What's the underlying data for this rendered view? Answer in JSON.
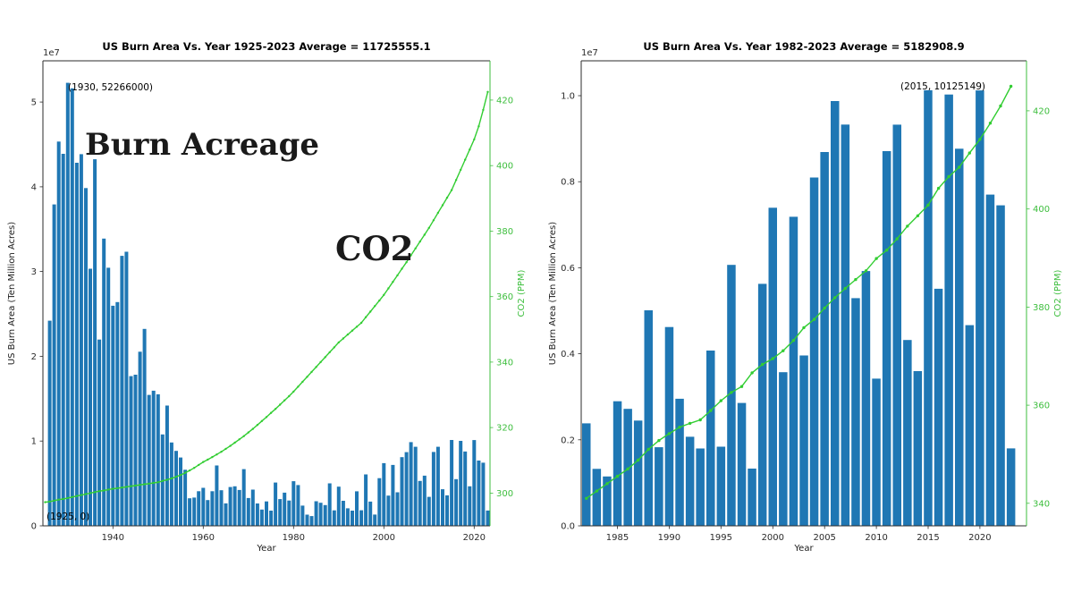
{
  "colors": {
    "bar": "#1f77b4",
    "co2_line": "#32cd32",
    "co2_axis": "#3dbe3d",
    "axis_dark": "#2b2b2b",
    "burn_label_blue": "#2878b8"
  },
  "chart_data": [
    {
      "type": "bar+line",
      "title": "US Burn Area Vs. Year 1925-2023 Average = 11725555.1",
      "xlabel": "Year",
      "ylabel": "US Burn Area (Ten Million Acres)",
      "y2label": "CO2 (PPM)",
      "offset_text": "1e7",
      "xlim": [
        1924.5,
        2023.5
      ],
      "ylim": [
        0,
        54860000
      ],
      "y2lim": [
        290,
        432
      ],
      "xticks": [
        1940,
        1960,
        1980,
        2000,
        2020
      ],
      "yticks": [
        {
          "v": 0,
          "label": "0"
        },
        {
          "v": 10000000,
          "label": "1"
        },
        {
          "v": 20000000,
          "label": "2"
        },
        {
          "v": 30000000,
          "label": "3"
        },
        {
          "v": 40000000,
          "label": "4"
        },
        {
          "v": 50000000,
          "label": "5"
        }
      ],
      "y2ticks": [
        {
          "v": 300,
          "label": "300"
        },
        {
          "v": 320,
          "label": "320"
        },
        {
          "v": 340,
          "label": "340"
        },
        {
          "v": 360,
          "label": "360"
        },
        {
          "v": 380,
          "label": "380"
        },
        {
          "v": 400,
          "label": "400"
        },
        {
          "v": 420,
          "label": "420"
        }
      ],
      "annotations": [
        {
          "text": "(1930, 52266000)"
        },
        {
          "text": "(1925, 0)"
        }
      ],
      "inner_labels": [
        {
          "text": "Burn Acreage",
          "color": "#2878b8"
        },
        {
          "text": "CO2",
          "color": "#32cd32"
        }
      ],
      "bars": {
        "name": "US Burn Area (acres)",
        "start_year": 1925,
        "values": [
          0,
          24200000,
          37919000,
          45335000,
          43890000,
          52266000,
          51607000,
          42838000,
          43841000,
          39852000,
          30335000,
          43249000,
          21980000,
          33891000,
          30449000,
          25963000,
          26401000,
          31854000,
          32333000,
          17661000,
          17827000,
          20540000,
          23226000,
          15445000,
          15941000,
          15519000,
          10781000,
          14187000,
          9836000,
          8839000,
          8063000,
          6613000,
          3245000,
          3332000,
          4078000,
          4479000,
          3036000,
          4078000,
          7120000,
          4197000,
          2652000,
          4574000,
          4658000,
          4231000,
          6689000,
          3278000,
          4278000,
          2641000,
          1915000,
          2879000,
          1791000,
          5109000,
          3152000,
          3910000,
          2986000,
          5260000,
          4814000,
          2382036,
          1323666,
          1148409,
          2896147,
          2719162,
          2447296,
          5009290,
          1827310,
          4621621,
          2953578,
          2069929,
          1797574,
          4073579,
          1840546,
          6065998,
          2856959,
          1329704,
          5626093,
          7393493,
          3570911,
          7184712,
          3960842,
          8097880,
          8689389,
          9873745,
          9328045,
          5292468,
          5921786,
          3422724,
          8711367,
          9326238,
          4319546,
          3595613,
          10125149,
          5509995,
          10026086,
          8767492,
          4664364,
          10122336,
          7700000,
          7450000,
          1800000
        ]
      },
      "line": {
        "name": "CO2 (PPM)",
        "start_year": 1925,
        "values": [
          297.2,
          297.4,
          297.7,
          298.0,
          298.2,
          298.5,
          298.8,
          299.1,
          299.4,
          299.7,
          300.0,
          300.3,
          300.6,
          300.8,
          301.1,
          301.3,
          301.5,
          301.7,
          301.9,
          302.1,
          302.3,
          302.5,
          302.7,
          302.9,
          303.1,
          303.3,
          303.7,
          304.1,
          304.5,
          305.0,
          305.5,
          306.2,
          306.9,
          307.7,
          308.6,
          309.5,
          310.2,
          311.0,
          311.8,
          312.6,
          313.5,
          314.4,
          315.4,
          316.4,
          317.4,
          318.5,
          319.6,
          320.8,
          322.0,
          323.2,
          324.5,
          325.7,
          327.0,
          328.3,
          329.6,
          331.0,
          332.5,
          334.0,
          335.5,
          337.0,
          338.5,
          340.0,
          341.5,
          343.0,
          344.5,
          346.0,
          347.2,
          348.4,
          349.6,
          350.8,
          352.0,
          353.7,
          355.4,
          357.1,
          358.8,
          360.5,
          362.5,
          364.5,
          366.5,
          368.5,
          370.5,
          372.6,
          374.7,
          376.8,
          378.9,
          381.0,
          383.3,
          385.6,
          387.9,
          390.2,
          392.5,
          395.6,
          398.7,
          401.8,
          404.9,
          408.0,
          412.0,
          417.0,
          422.5
        ]
      }
    },
    {
      "type": "bar+line",
      "title": "US Burn Area Vs. Year 1982-2023 Average = 5182908.9",
      "xlabel": "Year",
      "ylabel": "US Burn Area (Ten Million Acres)",
      "y2label": "CO2 (PPM)",
      "offset_text": "1e7",
      "xlim": [
        1981.5,
        2024.5
      ],
      "ylim": [
        0,
        10810000
      ],
      "y2lim": [
        335.4,
        430.2
      ],
      "xticks": [
        1985,
        1990,
        1995,
        2000,
        2005,
        2010,
        2015,
        2020
      ],
      "yticks": [
        {
          "v": 0,
          "label": "0.0"
        },
        {
          "v": 2000000,
          "label": "0.2"
        },
        {
          "v": 4000000,
          "label": "0.4"
        },
        {
          "v": 6000000,
          "label": "0.6"
        },
        {
          "v": 8000000,
          "label": "0.8"
        },
        {
          "v": 10000000,
          "label": "1.0"
        }
      ],
      "y2ticks": [
        {
          "v": 340,
          "label": "340"
        },
        {
          "v": 360,
          "label": "360"
        },
        {
          "v": 380,
          "label": "380"
        },
        {
          "v": 400,
          "label": "400"
        },
        {
          "v": 420,
          "label": "420"
        }
      ],
      "annotations": [
        {
          "text": "(2015, 10125149)"
        }
      ],
      "inner_labels": [],
      "bars": {
        "name": "US Burn Area (acres)",
        "start_year": 1982,
        "values": [
          2382036,
          1323666,
          1148409,
          2896147,
          2719162,
          2447296,
          5009290,
          1827310,
          4621621,
          2953578,
          2069929,
          1797574,
          4073579,
          1840546,
          6065998,
          2856959,
          1329704,
          5626093,
          7393493,
          3570911,
          7184712,
          3960842,
          8097880,
          8689389,
          9873745,
          9328045,
          5292468,
          5921786,
          3422724,
          8711367,
          9326238,
          4319546,
          3595613,
          10125149,
          5509995,
          10026086,
          8767492,
          4664364,
          10122336,
          7700000,
          7450000,
          1800000
        ]
      },
      "line": {
        "name": "CO2 (PPM)",
        "start_year": 1982,
        "values": [
          341.0,
          342.5,
          344.0,
          345.5,
          347.0,
          348.8,
          351.0,
          352.8,
          354.2,
          355.5,
          356.3,
          357.0,
          358.9,
          360.9,
          362.6,
          363.8,
          366.6,
          368.3,
          369.5,
          371.1,
          373.2,
          375.8,
          377.5,
          379.8,
          381.9,
          383.8,
          385.6,
          387.4,
          389.9,
          391.6,
          393.9,
          396.5,
          398.6,
          400.8,
          404.2,
          406.6,
          408.5,
          411.4,
          414.2,
          417.5,
          421.0,
          425.0
        ]
      }
    }
  ]
}
